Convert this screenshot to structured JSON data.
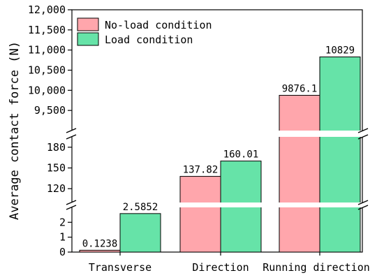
{
  "chart_data": {
    "type": "bar",
    "ylabel": "Average contact force (N)",
    "categories": [
      "Transverse",
      "Direction",
      "Running direction"
    ],
    "series": [
      {
        "name": "No-load condition",
        "color": "#ffa6ac",
        "values": [
          0.1238,
          137.82,
          9876.1
        ],
        "labels": [
          "0.1238",
          "137.82",
          "9876.1"
        ]
      },
      {
        "name": "Load condition",
        "color": "#66e3a8",
        "values": [
          2.5852,
          160.01,
          10829
        ],
        "labels": [
          "2.5852",
          "160.01",
          "10829"
        ]
      }
    ],
    "y_segments": [
      {
        "range": [
          0,
          3
        ],
        "ticks": [
          0,
          1,
          2
        ],
        "tick_labels": [
          "0",
          "1",
          "2"
        ]
      },
      {
        "range": [
          100,
          195
        ],
        "ticks": [
          120,
          150,
          180
        ],
        "tick_labels": [
          "120",
          "150",
          "180"
        ]
      },
      {
        "range": [
          9000,
          12000
        ],
        "ticks": [
          9500,
          10000,
          10500,
          11000,
          11500,
          12000
        ],
        "tick_labels": [
          "9,500",
          "10,000",
          "10,500",
          "11,000",
          "11,500",
          "12,000"
        ]
      }
    ],
    "axis_breaks": true,
    "legend_position": "top-left",
    "grid": false
  }
}
